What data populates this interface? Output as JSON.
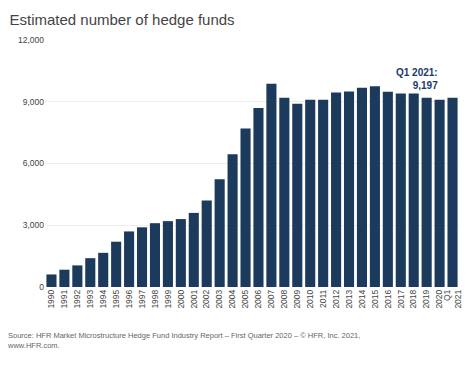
{
  "chart_data": {
    "type": "bar",
    "title": "Estimated number of hedge funds",
    "categories": [
      "1990",
      "1991",
      "1992",
      "1993",
      "1994",
      "1995",
      "1996",
      "1997",
      "1998",
      "1999",
      "2000",
      "2001",
      "2002",
      "2003",
      "2004",
      "2005",
      "2006",
      "2007",
      "2008",
      "2009",
      "2010",
      "2011",
      "2012",
      "2013",
      "2014",
      "2015",
      "2016",
      "2017",
      "2018",
      "2019",
      "2020",
      "Q1\n2021"
    ],
    "values": [
      610,
      840,
      1050,
      1400,
      1660,
      2200,
      2700,
      2900,
      3100,
      3200,
      3300,
      3600,
      4200,
      5230,
      6450,
      7700,
      8700,
      9870,
      9200,
      8900,
      9100,
      9100,
      9450,
      9500,
      9680,
      9750,
      9480,
      9400,
      9400,
      9200,
      9100,
      9197
    ],
    "color": "#1b3a5c",
    "ylim": [
      0,
      12000
    ],
    "yticks": [
      0,
      {
        "value": 3000,
        "label": "3,000"
      },
      {
        "value": 6000,
        "label": "6,000"
      },
      {
        "value": 9000,
        "label": "9,000"
      },
      {
        "value": 12000,
        "label": "12,000"
      }
    ],
    "grid": true,
    "annotations": [
      {
        "text": "Q1 2021:\n9,197",
        "color": "#1b3a6c"
      }
    ],
    "source": "Source: HFR Market Microstructure Hedge Fund Industry Report – First Quarter 2020 – © HFR, Inc. 2021,\nwww.HFR.com."
  }
}
